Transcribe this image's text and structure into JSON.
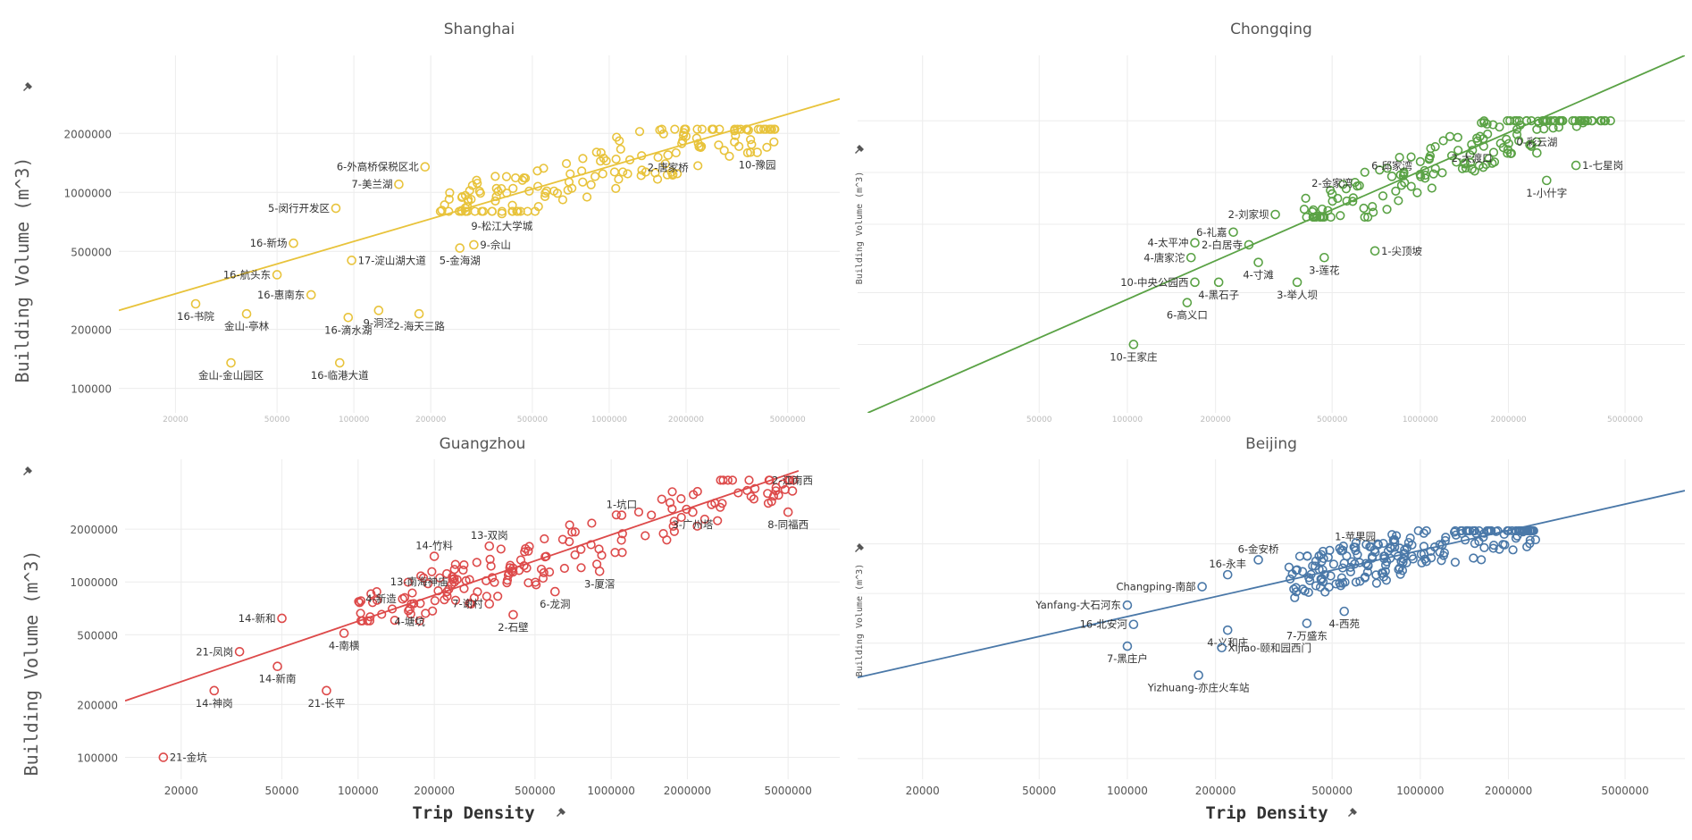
{
  "figure": {
    "x_axis_title": "Trip Density",
    "y_axis_title": "Building Volume (m^3)",
    "pin_icon": "pin-icon",
    "x_tick_labels": [
      "20000",
      "50000",
      "100000",
      "200000",
      "500000",
      "1000000",
      "2000000",
      "5000000"
    ],
    "y_tick_labels": [
      "100000",
      "200000",
      "500000",
      "1000000",
      "2000000"
    ]
  },
  "chart_data": [
    {
      "type": "scatter",
      "title": "Shanghai",
      "color": "#e8c33b",
      "xscale": "log",
      "yscale": "log",
      "xlim": [
        12000,
        8000000
      ],
      "ylim": [
        75000,
        5000000
      ],
      "x_ticks": [
        20000,
        50000,
        100000,
        200000,
        500000,
        1000000,
        2000000,
        5000000
      ],
      "y_ticks": [
        100000,
        200000,
        500000,
        1000000,
        2000000
      ],
      "show_x_tick_labels": false,
      "show_y_tick_labels": true,
      "fit_line": [
        [
          12000,
          250000
        ],
        [
          8000000,
          3000000
        ]
      ],
      "labeled_points": [
        {
          "label": "6-外高桥保税区北",
          "x": 190000,
          "y": 1350000,
          "side": "left"
        },
        {
          "label": "7-美兰湖",
          "x": 150000,
          "y": 1100000,
          "side": "left"
        },
        {
          "label": "5-闵行开发区",
          "x": 85000,
          "y": 830000,
          "side": "left"
        },
        {
          "label": "16-新场",
          "x": 58000,
          "y": 550000,
          "side": "left"
        },
        {
          "label": "16-航头东",
          "x": 50000,
          "y": 380000,
          "side": "left"
        },
        {
          "label": "16-书院",
          "x": 24000,
          "y": 270000,
          "side": "below"
        },
        {
          "label": "16-惠南东",
          "x": 68000,
          "y": 300000,
          "side": "left"
        },
        {
          "label": "金山-亭林",
          "x": 38000,
          "y": 240000,
          "side": "below"
        },
        {
          "label": "16-滴水湖",
          "x": 95000,
          "y": 230000,
          "side": "below"
        },
        {
          "label": "17-淀山湖大道",
          "x": 98000,
          "y": 450000,
          "side": "right"
        },
        {
          "label": "金山-金山园区",
          "x": 33000,
          "y": 135000,
          "side": "below"
        },
        {
          "label": "16-临港大道",
          "x": 88000,
          "y": 135000,
          "side": "below"
        },
        {
          "label": "9-洞泾",
          "x": 125000,
          "y": 250000,
          "side": "below"
        },
        {
          "label": "2-海天三路",
          "x": 180000,
          "y": 240000,
          "side": "below"
        },
        {
          "label": "5-金海湖",
          "x": 260000,
          "y": 520000,
          "side": "below"
        },
        {
          "label": "9-佘山",
          "x": 295000,
          "y": 540000,
          "side": "right"
        },
        {
          "label": "9-松江大学城",
          "x": 380000,
          "y": 780000,
          "side": "below"
        },
        {
          "label": "2-唐家桥",
          "x": 1700000,
          "y": 1550000,
          "side": "below"
        },
        {
          "label": "10-豫园",
          "x": 3800000,
          "y": 1600000,
          "side": "below"
        }
      ],
      "cluster": {
        "x_from": 200000,
        "x_to": 4500000,
        "y_from": 800000,
        "y_to": 2100000
      }
    },
    {
      "type": "scatter",
      "title": "Chongqing",
      "color": "#5aa245",
      "xscale": "log",
      "yscale": "log",
      "xlim": [
        12000,
        8000000
      ],
      "ylim": [
        40000,
        4800000
      ],
      "x_ticks": [
        20000,
        50000,
        100000,
        200000,
        500000,
        1000000,
        2000000,
        5000000
      ],
      "y_ticks": [
        100000,
        200000,
        500000,
        1000000,
        2000000
      ],
      "show_x_tick_labels": false,
      "show_y_tick_labels": false,
      "fit_line": [
        [
          13000,
          40000
        ],
        [
          8000000,
          4800000
        ]
      ],
      "labeled_points": [
        {
          "label": "0-彩云湖",
          "x": 2500000,
          "y": 1300000,
          "side": "above"
        },
        {
          "label": "1-七星岗",
          "x": 3400000,
          "y": 1100000,
          "side": "right"
        },
        {
          "label": "1-小什字",
          "x": 2700000,
          "y": 900000,
          "side": "below"
        },
        {
          "label": "2-大渡口",
          "x": 1500000,
          "y": 1050000,
          "side": "above"
        },
        {
          "label": "6-邱家湾",
          "x": 800000,
          "y": 950000,
          "side": "above"
        },
        {
          "label": "2-金家湾",
          "x": 500000,
          "y": 750000,
          "side": "above"
        },
        {
          "label": "2-刘家坝",
          "x": 320000,
          "y": 570000,
          "side": "left"
        },
        {
          "label": "6-礼嘉",
          "x": 230000,
          "y": 450000,
          "side": "left"
        },
        {
          "label": "4-太平冲",
          "x": 170000,
          "y": 390000,
          "side": "left"
        },
        {
          "label": "2-白居寺",
          "x": 260000,
          "y": 380000,
          "side": "left"
        },
        {
          "label": "4-唐家沱",
          "x": 165000,
          "y": 320000,
          "side": "left"
        },
        {
          "label": "4-寸滩",
          "x": 280000,
          "y": 300000,
          "side": "below"
        },
        {
          "label": "3-莲花",
          "x": 470000,
          "y": 320000,
          "side": "below"
        },
        {
          "label": "1-尖顶坡",
          "x": 700000,
          "y": 350000,
          "side": "right"
        },
        {
          "label": "10-中央公园西",
          "x": 170000,
          "y": 230000,
          "side": "left"
        },
        {
          "label": "4-黑石子",
          "x": 205000,
          "y": 230000,
          "side": "below"
        },
        {
          "label": "3-举人坝",
          "x": 380000,
          "y": 230000,
          "side": "below"
        },
        {
          "label": "6-高义口",
          "x": 160000,
          "y": 175000,
          "side": "below"
        },
        {
          "label": "10-王家庄",
          "x": 105000,
          "y": 100000,
          "side": "below"
        }
      ],
      "cluster": {
        "x_from": 400000,
        "x_to": 4500000,
        "y_from": 550000,
        "y_to": 2000000
      }
    },
    {
      "type": "scatter",
      "title": "Guangzhou",
      "color": "#dd4a4a",
      "xscale": "log",
      "yscale": "log",
      "xlim": [
        12000,
        8000000
      ],
      "ylim": [
        75000,
        5000000
      ],
      "x_ticks": [
        20000,
        50000,
        100000,
        200000,
        500000,
        1000000,
        2000000,
        5000000
      ],
      "y_ticks": [
        100000,
        200000,
        500000,
        1000000,
        2000000
      ],
      "show_x_tick_labels": true,
      "show_y_tick_labels": true,
      "fit_line": [
        [
          12000,
          210000
        ],
        [
          5500000,
          4300000
        ]
      ],
      "labeled_points": [
        {
          "label": "1-坑口",
          "x": 1100000,
          "y": 2400000,
          "side": "above"
        },
        {
          "label": "2-江南西",
          "x": 5200000,
          "y": 3300000,
          "side": "above"
        },
        {
          "label": "8-同福西",
          "x": 5000000,
          "y": 2500000,
          "side": "below"
        },
        {
          "label": "3-广州塔",
          "x": 2100000,
          "y": 2500000,
          "side": "below"
        },
        {
          "label": "13-双岗",
          "x": 330000,
          "y": 1600000,
          "side": "above"
        },
        {
          "label": "14-竹料",
          "x": 200000,
          "y": 1400000,
          "side": "above"
        },
        {
          "label": "13-南海神庙",
          "x": 240000,
          "y": 1000000,
          "side": "left"
        },
        {
          "label": "3-厦滘",
          "x": 900000,
          "y": 1150000,
          "side": "below"
        },
        {
          "label": "4-新造",
          "x": 150000,
          "y": 800000,
          "side": "left"
        },
        {
          "label": "7-谢村",
          "x": 330000,
          "y": 750000,
          "side": "left"
        },
        {
          "label": "6-龙洞",
          "x": 600000,
          "y": 880000,
          "side": "below"
        },
        {
          "label": "4-塘坑",
          "x": 160000,
          "y": 700000,
          "side": "below"
        },
        {
          "label": "2-石壁",
          "x": 410000,
          "y": 650000,
          "side": "below"
        },
        {
          "label": "14-新和",
          "x": 50000,
          "y": 620000,
          "side": "left"
        },
        {
          "label": "4-南横",
          "x": 88000,
          "y": 510000,
          "side": "below"
        },
        {
          "label": "21-凤岗",
          "x": 34000,
          "y": 400000,
          "side": "left"
        },
        {
          "label": "14-新南",
          "x": 48000,
          "y": 330000,
          "side": "below"
        },
        {
          "label": "14-神岗",
          "x": 27000,
          "y": 240000,
          "side": "below"
        },
        {
          "label": "21-长平",
          "x": 75000,
          "y": 240000,
          "side": "below"
        },
        {
          "label": "21-金坑",
          "x": 17000,
          "y": 100000,
          "side": "right"
        }
      ],
      "cluster": {
        "x_from": 100000,
        "x_to": 5500000,
        "y_from": 600000,
        "y_to": 3800000
      }
    },
    {
      "type": "scatter",
      "title": "Beijing",
      "color": "#4a78a8",
      "xscale": "log",
      "yscale": "log",
      "xlim": [
        12000,
        8000000
      ],
      "ylim": [
        75000,
        6500000
      ],
      "x_ticks": [
        20000,
        50000,
        100000,
        200000,
        500000,
        1000000,
        2000000,
        5000000
      ],
      "y_ticks": [
        100000,
        200000,
        500000,
        1000000,
        2000000
      ],
      "show_x_tick_labels": true,
      "show_y_tick_labels": false,
      "fit_line": [
        [
          12000,
          310000
        ],
        [
          8000000,
          4200000
        ]
      ],
      "labeled_points": [
        {
          "label": "1-苹果园",
          "x": 600000,
          "y": 1900000,
          "side": "above"
        },
        {
          "label": "6-金安桥",
          "x": 280000,
          "y": 1600000,
          "side": "above"
        },
        {
          "label": "16-永丰",
          "x": 220000,
          "y": 1300000,
          "side": "above"
        },
        {
          "label": "Changping-南部",
          "x": 180000,
          "y": 1100000,
          "side": "left"
        },
        {
          "label": "Yanfang-大石河东",
          "x": 100000,
          "y": 850000,
          "side": "left"
        },
        {
          "label": "16-北安河",
          "x": 105000,
          "y": 650000,
          "side": "left"
        },
        {
          "label": "7-万盛东",
          "x": 410000,
          "y": 660000,
          "side": "below"
        },
        {
          "label": "4-义和庄",
          "x": 220000,
          "y": 600000,
          "side": "below"
        },
        {
          "label": "4-西苑",
          "x": 550000,
          "y": 780000,
          "side": "below"
        },
        {
          "label": "7-黑庄户",
          "x": 100000,
          "y": 480000,
          "side": "below"
        },
        {
          "label": "Xijiao-颐和园西门",
          "x": 210000,
          "y": 470000,
          "side": "right"
        },
        {
          "label": "Yizhuang-亦庄火车站",
          "x": 175000,
          "y": 320000,
          "side": "below"
        }
      ],
      "cluster": {
        "x_from": 350000,
        "x_to": 2500000,
        "y_from": 800000,
        "y_to": 2400000
      }
    }
  ]
}
